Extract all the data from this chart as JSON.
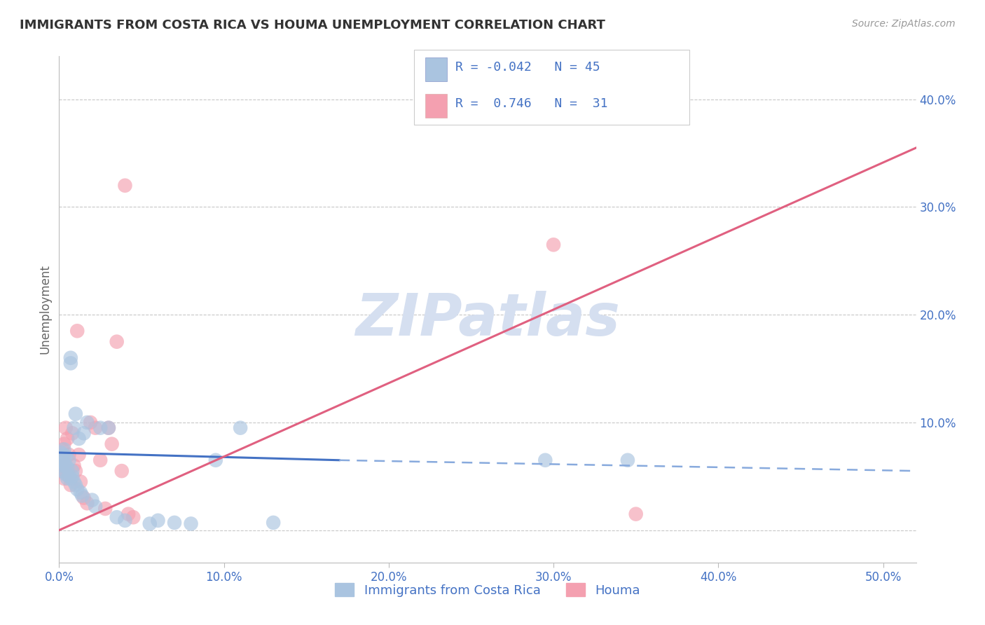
{
  "title": "IMMIGRANTS FROM COSTA RICA VS HOUMA UNEMPLOYMENT CORRELATION CHART",
  "source": "Source: ZipAtlas.com",
  "ylabel": "Unemployment",
  "xlim": [
    0.0,
    0.52
  ],
  "ylim": [
    -0.03,
    0.44
  ],
  "xticks": [
    0.0,
    0.1,
    0.2,
    0.3,
    0.4,
    0.5
  ],
  "xticklabels": [
    "0.0%",
    "10.0%",
    "20.0%",
    "30.0%",
    "40.0%",
    "50.0%"
  ],
  "yticks": [
    0.0,
    0.1,
    0.2,
    0.3,
    0.4
  ],
  "yticklabels": [
    "",
    "10.0%",
    "20.0%",
    "30.0%",
    "40.0%"
  ],
  "background_color": "#ffffff",
  "grid_color": "#c8c8c8",
  "watermark": "ZIPatlas",
  "legend": {
    "blue_label": "Immigrants from Costa Rica",
    "pink_label": "Houma",
    "blue_R": "-0.042",
    "blue_N": "45",
    "pink_R": "0.746",
    "pink_N": "31"
  },
  "blue_color": "#aac4e0",
  "pink_color": "#f4a0b0",
  "blue_line_color": "#4472c4",
  "blue_line_dash_color": "#88aadd",
  "pink_line_color": "#e06080",
  "axis_label_color": "#4472c4",
  "watermark_color": "#d5dff0",
  "title_color": "#333333",
  "blue_scatter_x": [
    0.001,
    0.001,
    0.002,
    0.002,
    0.002,
    0.003,
    0.003,
    0.003,
    0.004,
    0.004,
    0.004,
    0.005,
    0.005,
    0.006,
    0.006,
    0.007,
    0.007,
    0.007,
    0.008,
    0.008,
    0.009,
    0.009,
    0.01,
    0.01,
    0.011,
    0.012,
    0.013,
    0.014,
    0.015,
    0.017,
    0.02,
    0.022,
    0.025,
    0.03,
    0.035,
    0.04,
    0.055,
    0.06,
    0.07,
    0.08,
    0.095,
    0.11,
    0.13,
    0.295,
    0.345
  ],
  "blue_scatter_y": [
    0.065,
    0.072,
    0.06,
    0.068,
    0.055,
    0.07,
    0.062,
    0.075,
    0.06,
    0.068,
    0.052,
    0.058,
    0.048,
    0.065,
    0.05,
    0.048,
    0.155,
    0.16,
    0.05,
    0.055,
    0.045,
    0.095,
    0.042,
    0.108,
    0.038,
    0.085,
    0.035,
    0.032,
    0.09,
    0.1,
    0.028,
    0.022,
    0.095,
    0.095,
    0.012,
    0.009,
    0.006,
    0.009,
    0.007,
    0.006,
    0.065,
    0.095,
    0.007,
    0.065,
    0.065
  ],
  "pink_scatter_x": [
    0.001,
    0.002,
    0.002,
    0.003,
    0.003,
    0.004,
    0.005,
    0.006,
    0.006,
    0.007,
    0.008,
    0.009,
    0.01,
    0.011,
    0.012,
    0.013,
    0.015,
    0.017,
    0.019,
    0.022,
    0.025,
    0.028,
    0.03,
    0.032,
    0.035,
    0.038,
    0.04,
    0.042,
    0.045,
    0.3,
    0.35
  ],
  "pink_scatter_y": [
    0.055,
    0.06,
    0.075,
    0.08,
    0.048,
    0.095,
    0.085,
    0.05,
    0.07,
    0.042,
    0.09,
    0.06,
    0.055,
    0.185,
    0.07,
    0.045,
    0.03,
    0.025,
    0.1,
    0.095,
    0.065,
    0.02,
    0.095,
    0.08,
    0.175,
    0.055,
    0.32,
    0.015,
    0.012,
    0.265,
    0.015
  ],
  "blue_line_solid": {
    "x0": 0.0,
    "x1": 0.17,
    "y0": 0.072,
    "y1": 0.065
  },
  "blue_line_dash": {
    "x0": 0.17,
    "x1": 0.52,
    "y0": 0.065,
    "y1": 0.055
  },
  "pink_line": {
    "x0": 0.0,
    "x1": 0.52,
    "y0": 0.0,
    "y1": 0.355
  }
}
